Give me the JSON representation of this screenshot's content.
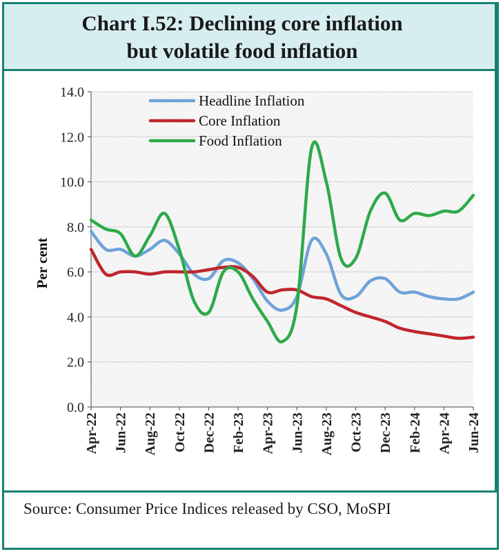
{
  "title_line1": "Chart I.52: Declining core inflation",
  "title_line2": "but volatile food inflation",
  "source": "Source: Consumer Price Indices released by CSO, MoSPI",
  "colors": {
    "headline": "#6fa3d8",
    "core": "#c0262c",
    "food": "#2eaa4a",
    "border": "#17826f",
    "title_bg": "#d7eef1"
  },
  "chart_data": {
    "type": "line",
    "title": "Chart I.52: Declining core inflation but volatile food inflation",
    "xlabel": "",
    "ylabel": "Per cent",
    "ylim": [
      0,
      14
    ],
    "yticks": [
      "0.0",
      "2.0",
      "4.0",
      "6.0",
      "8.0",
      "10.0",
      "12.0",
      "14.0"
    ],
    "grid": true,
    "legend": "top-left",
    "x": [
      "Apr-22",
      "May-22",
      "Jun-22",
      "Jul-22",
      "Aug-22",
      "Sep-22",
      "Oct-22",
      "Nov-22",
      "Dec-22",
      "Jan-23",
      "Feb-23",
      "Mar-23",
      "Apr-23",
      "May-23",
      "Jun-23",
      "Jul-23",
      "Aug-23",
      "Sep-23",
      "Oct-23",
      "Nov-23",
      "Dec-23",
      "Jan-24",
      "Feb-24",
      "Mar-24",
      "Apr-24",
      "May-24",
      "Jun-24"
    ],
    "xtick_labels": [
      "Apr-22",
      "Jun-22",
      "Aug-22",
      "Oct-22",
      "Dec-22",
      "Feb-23",
      "Apr-23",
      "Jun-23",
      "Aug-23",
      "Oct-23",
      "Dec-23",
      "Feb-24",
      "Apr-24",
      "Jun-24"
    ],
    "series": [
      {
        "name": "Headline Inflation",
        "key": "headline",
        "values": [
          7.8,
          7.0,
          7.0,
          6.7,
          7.0,
          7.4,
          6.8,
          5.9,
          5.7,
          6.5,
          6.4,
          5.7,
          4.7,
          4.3,
          4.9,
          7.4,
          6.8,
          5.0,
          4.9,
          5.6,
          5.7,
          5.1,
          5.1,
          4.9,
          4.8,
          4.8,
          5.1
        ]
      },
      {
        "name": "Core Inflation",
        "key": "core",
        "values": [
          7.0,
          5.9,
          6.0,
          6.0,
          5.9,
          6.0,
          6.0,
          6.0,
          6.1,
          6.2,
          6.2,
          5.8,
          5.1,
          5.2,
          5.2,
          4.9,
          4.8,
          4.5,
          4.2,
          4.0,
          3.8,
          3.5,
          3.35,
          3.25,
          3.15,
          3.05,
          3.1
        ]
      },
      {
        "name": "Food Inflation",
        "key": "food",
        "values": [
          8.3,
          7.9,
          7.7,
          6.7,
          7.6,
          8.6,
          7.0,
          4.7,
          4.2,
          6.0,
          6.0,
          4.8,
          3.8,
          2.9,
          4.5,
          11.5,
          10.0,
          6.6,
          6.6,
          8.7,
          9.5,
          8.3,
          8.6,
          8.5,
          8.7,
          8.7,
          9.4
        ]
      }
    ]
  }
}
